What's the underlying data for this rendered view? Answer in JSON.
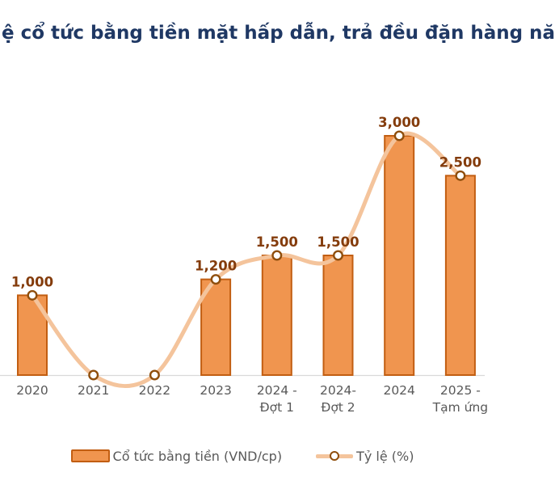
{
  "title": {
    "text": "ệ cổ tức bằng tiền mặt hấp dẫn, trả đều đặn hàng nă"
  },
  "legend": {
    "items": [
      {
        "label": "Cổ tức bằng tiền (VND/cp)",
        "swatch": "bar-swatch"
      },
      {
        "label": "Tỷ lệ (%)",
        "swatch": "line-marker-swatch"
      }
    ]
  },
  "chart_data": {
    "type": "bar",
    "subtype": "combo-bar-with-line-overlay",
    "categories": [
      "2020",
      "2021",
      "2022",
      "2023",
      "2024 - Đợt 1",
      "2024- Đợt 2",
      "2024",
      "2025 - Tạm ứng"
    ],
    "x_tick_lines": [
      "2020",
      "2021",
      "2022",
      "2023",
      "2024 -\nĐợt 1",
      "2024-\nĐợt 2",
      "2024",
      "2025 -\nTạm ứng"
    ],
    "series": [
      {
        "name": "Cổ tức bằng tiền (VND/cp)",
        "type": "bar",
        "values": [
          1000,
          0,
          0,
          1200,
          1500,
          1500,
          3000,
          2500
        ]
      },
      {
        "name": "Tỷ lệ (%)",
        "type": "line",
        "marker": "circle",
        "values_note": "markers coincide with bar tops; zero years sit on the axis",
        "values": [
          1000,
          0,
          0,
          1200,
          1500,
          1500,
          3000,
          2500
        ]
      }
    ],
    "data_labels": [
      "1,000",
      "",
      "",
      "1,200",
      "1,500",
      "1,500",
      "3,000",
      "2,500"
    ],
    "ylim": [
      0,
      3000
    ],
    "grid": false,
    "y_axis_shown": false,
    "legend_position": "bottom"
  },
  "colors": {
    "title": "#1F3864",
    "bar_fill": "#F0954F",
    "bar_border": "#C25E12",
    "line": "#F4C49C",
    "marker_fill": "#FFFFFF",
    "marker_border": "#8F4E0C",
    "data_label": "#843C0C",
    "axis_line": "#D9D9D9",
    "axis_text": "#595959"
  }
}
